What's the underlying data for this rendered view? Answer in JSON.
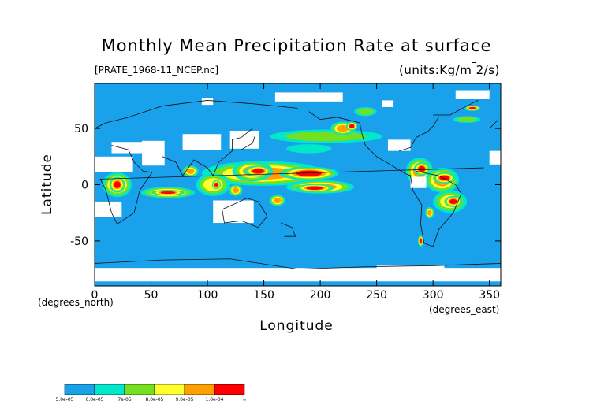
{
  "chart_data": {
    "type": "heatmap",
    "title": "Monthly Mean Precipitation Rate at surface",
    "subtitle": "[PRATE_1968-11_NCEP.nc]",
    "units": "(units:Kg/m^-2/s)",
    "xlabel": "Longitude",
    "ylabel": "Latitude",
    "x_unit_label": "(degrees_east)",
    "y_unit_label": "(degrees_north)",
    "xlim": [
      0,
      360
    ],
    "ylim": [
      -90,
      90
    ],
    "x_ticks": [
      0,
      50,
      100,
      150,
      200,
      250,
      300,
      350
    ],
    "y_ticks": [
      -50,
      0,
      50
    ],
    "colorbar": {
      "levels": [
        "5.0e-05",
        "6.0e-05",
        "7e-05",
        "8.0e-05",
        "9.0e-05",
        "1.0e-04",
        "∞"
      ],
      "colors": [
        "#1aa1ec",
        "#00e8c9",
        "#74e020",
        "#ffff2e",
        "#ff9f00",
        "#ff0000"
      ]
    },
    "regions": [
      {
        "lon": 150,
        "lat": 10,
        "w": 110,
        "h": 22,
        "level": 5
      },
      {
        "lon": 140,
        "lat": 12,
        "w": 36,
        "h": 18,
        "level": 5
      },
      {
        "lon": 190,
        "lat": 10,
        "w": 52,
        "h": 12,
        "level": 6
      },
      {
        "lon": 145,
        "lat": 12,
        "w": 24,
        "h": 10,
        "level": 6
      },
      {
        "lon": 200,
        "lat": -2,
        "w": 60,
        "h": 12,
        "level": 5
      },
      {
        "lon": 195,
        "lat": -3,
        "w": 34,
        "h": 7,
        "level": 6
      },
      {
        "lon": 205,
        "lat": 43,
        "w": 100,
        "h": 12,
        "level": 3
      },
      {
        "lon": 220,
        "lat": 50,
        "w": 22,
        "h": 12,
        "level": 5
      },
      {
        "lon": 228,
        "lat": 52,
        "w": 10,
        "h": 8,
        "level": 6
      },
      {
        "lon": 20,
        "lat": 0,
        "w": 26,
        "h": 22,
        "level": 5
      },
      {
        "lon": 20,
        "lat": 0,
        "w": 14,
        "h": 14,
        "level": 6
      },
      {
        "lon": 65,
        "lat": -7,
        "w": 48,
        "h": 10,
        "level": 5
      },
      {
        "lon": 65,
        "lat": -7,
        "w": 30,
        "h": 5,
        "level": 6
      },
      {
        "lon": 105,
        "lat": 0,
        "w": 30,
        "h": 20,
        "level": 4
      },
      {
        "lon": 108,
        "lat": 0,
        "w": 8,
        "h": 8,
        "level": 6
      },
      {
        "lon": 288,
        "lat": 12,
        "w": 24,
        "h": 24,
        "level": 5
      },
      {
        "lon": 290,
        "lat": 14,
        "w": 14,
        "h": 12,
        "level": 6
      },
      {
        "lon": 308,
        "lat": 4,
        "w": 30,
        "h": 22,
        "level": 5
      },
      {
        "lon": 310,
        "lat": 6,
        "w": 20,
        "h": 10,
        "level": 6
      },
      {
        "lon": 315,
        "lat": -15,
        "w": 30,
        "h": 20,
        "level": 4
      },
      {
        "lon": 318,
        "lat": -15,
        "w": 16,
        "h": 10,
        "level": 6
      },
      {
        "lon": 297,
        "lat": -25,
        "w": 8,
        "h": 10,
        "level": 5
      },
      {
        "lon": 289,
        "lat": -50,
        "w": 5,
        "h": 10,
        "level": 6
      },
      {
        "lon": 335,
        "lat": 68,
        "w": 14,
        "h": 5,
        "level": 6
      },
      {
        "lon": 240,
        "lat": 65,
        "w": 20,
        "h": 8,
        "level": 3
      },
      {
        "lon": 330,
        "lat": 58,
        "w": 24,
        "h": 6,
        "level": 3
      },
      {
        "lon": 85,
        "lat": 12,
        "w": 14,
        "h": 10,
        "level": 5
      },
      {
        "lon": 125,
        "lat": -5,
        "w": 12,
        "h": 10,
        "level": 5
      },
      {
        "lon": 162,
        "lat": -14,
        "w": 14,
        "h": 10,
        "level": 5
      },
      {
        "lon": 190,
        "lat": 32,
        "w": 40,
        "h": 8,
        "level": 2
      }
    ],
    "missing": [
      {
        "lon": 0,
        "lat": 18,
        "w": 34,
        "h": 14
      },
      {
        "lon": 15,
        "lat": 33,
        "w": 40,
        "h": 10
      },
      {
        "lon": 42,
        "lat": 28,
        "w": 20,
        "h": 22
      },
      {
        "lon": 78,
        "lat": 38,
        "w": 34,
        "h": 14
      },
      {
        "lon": 120,
        "lat": 40,
        "w": 26,
        "h": 16
      },
      {
        "lon": 0,
        "lat": -22,
        "w": 24,
        "h": 14
      },
      {
        "lon": 105,
        "lat": -24,
        "w": 36,
        "h": 20
      },
      {
        "lon": 260,
        "lat": 35,
        "w": 20,
        "h": 10
      },
      {
        "lon": 280,
        "lat": 2,
        "w": 14,
        "h": 10
      },
      {
        "lon": 350,
        "lat": 24,
        "w": 14,
        "h": 12
      },
      {
        "lon": 160,
        "lat": 78,
        "w": 60,
        "h": 8
      },
      {
        "lon": 0,
        "lat": -80,
        "w": 360,
        "h": 12
      },
      {
        "lon": 250,
        "lat": -75,
        "w": 60,
        "h": 6
      },
      {
        "lon": 95,
        "lat": 74,
        "w": 10,
        "h": 6
      },
      {
        "lon": 255,
        "lat": 72,
        "w": 10,
        "h": 6
      },
      {
        "lon": 320,
        "lat": 80,
        "w": 30,
        "h": 8
      }
    ]
  }
}
